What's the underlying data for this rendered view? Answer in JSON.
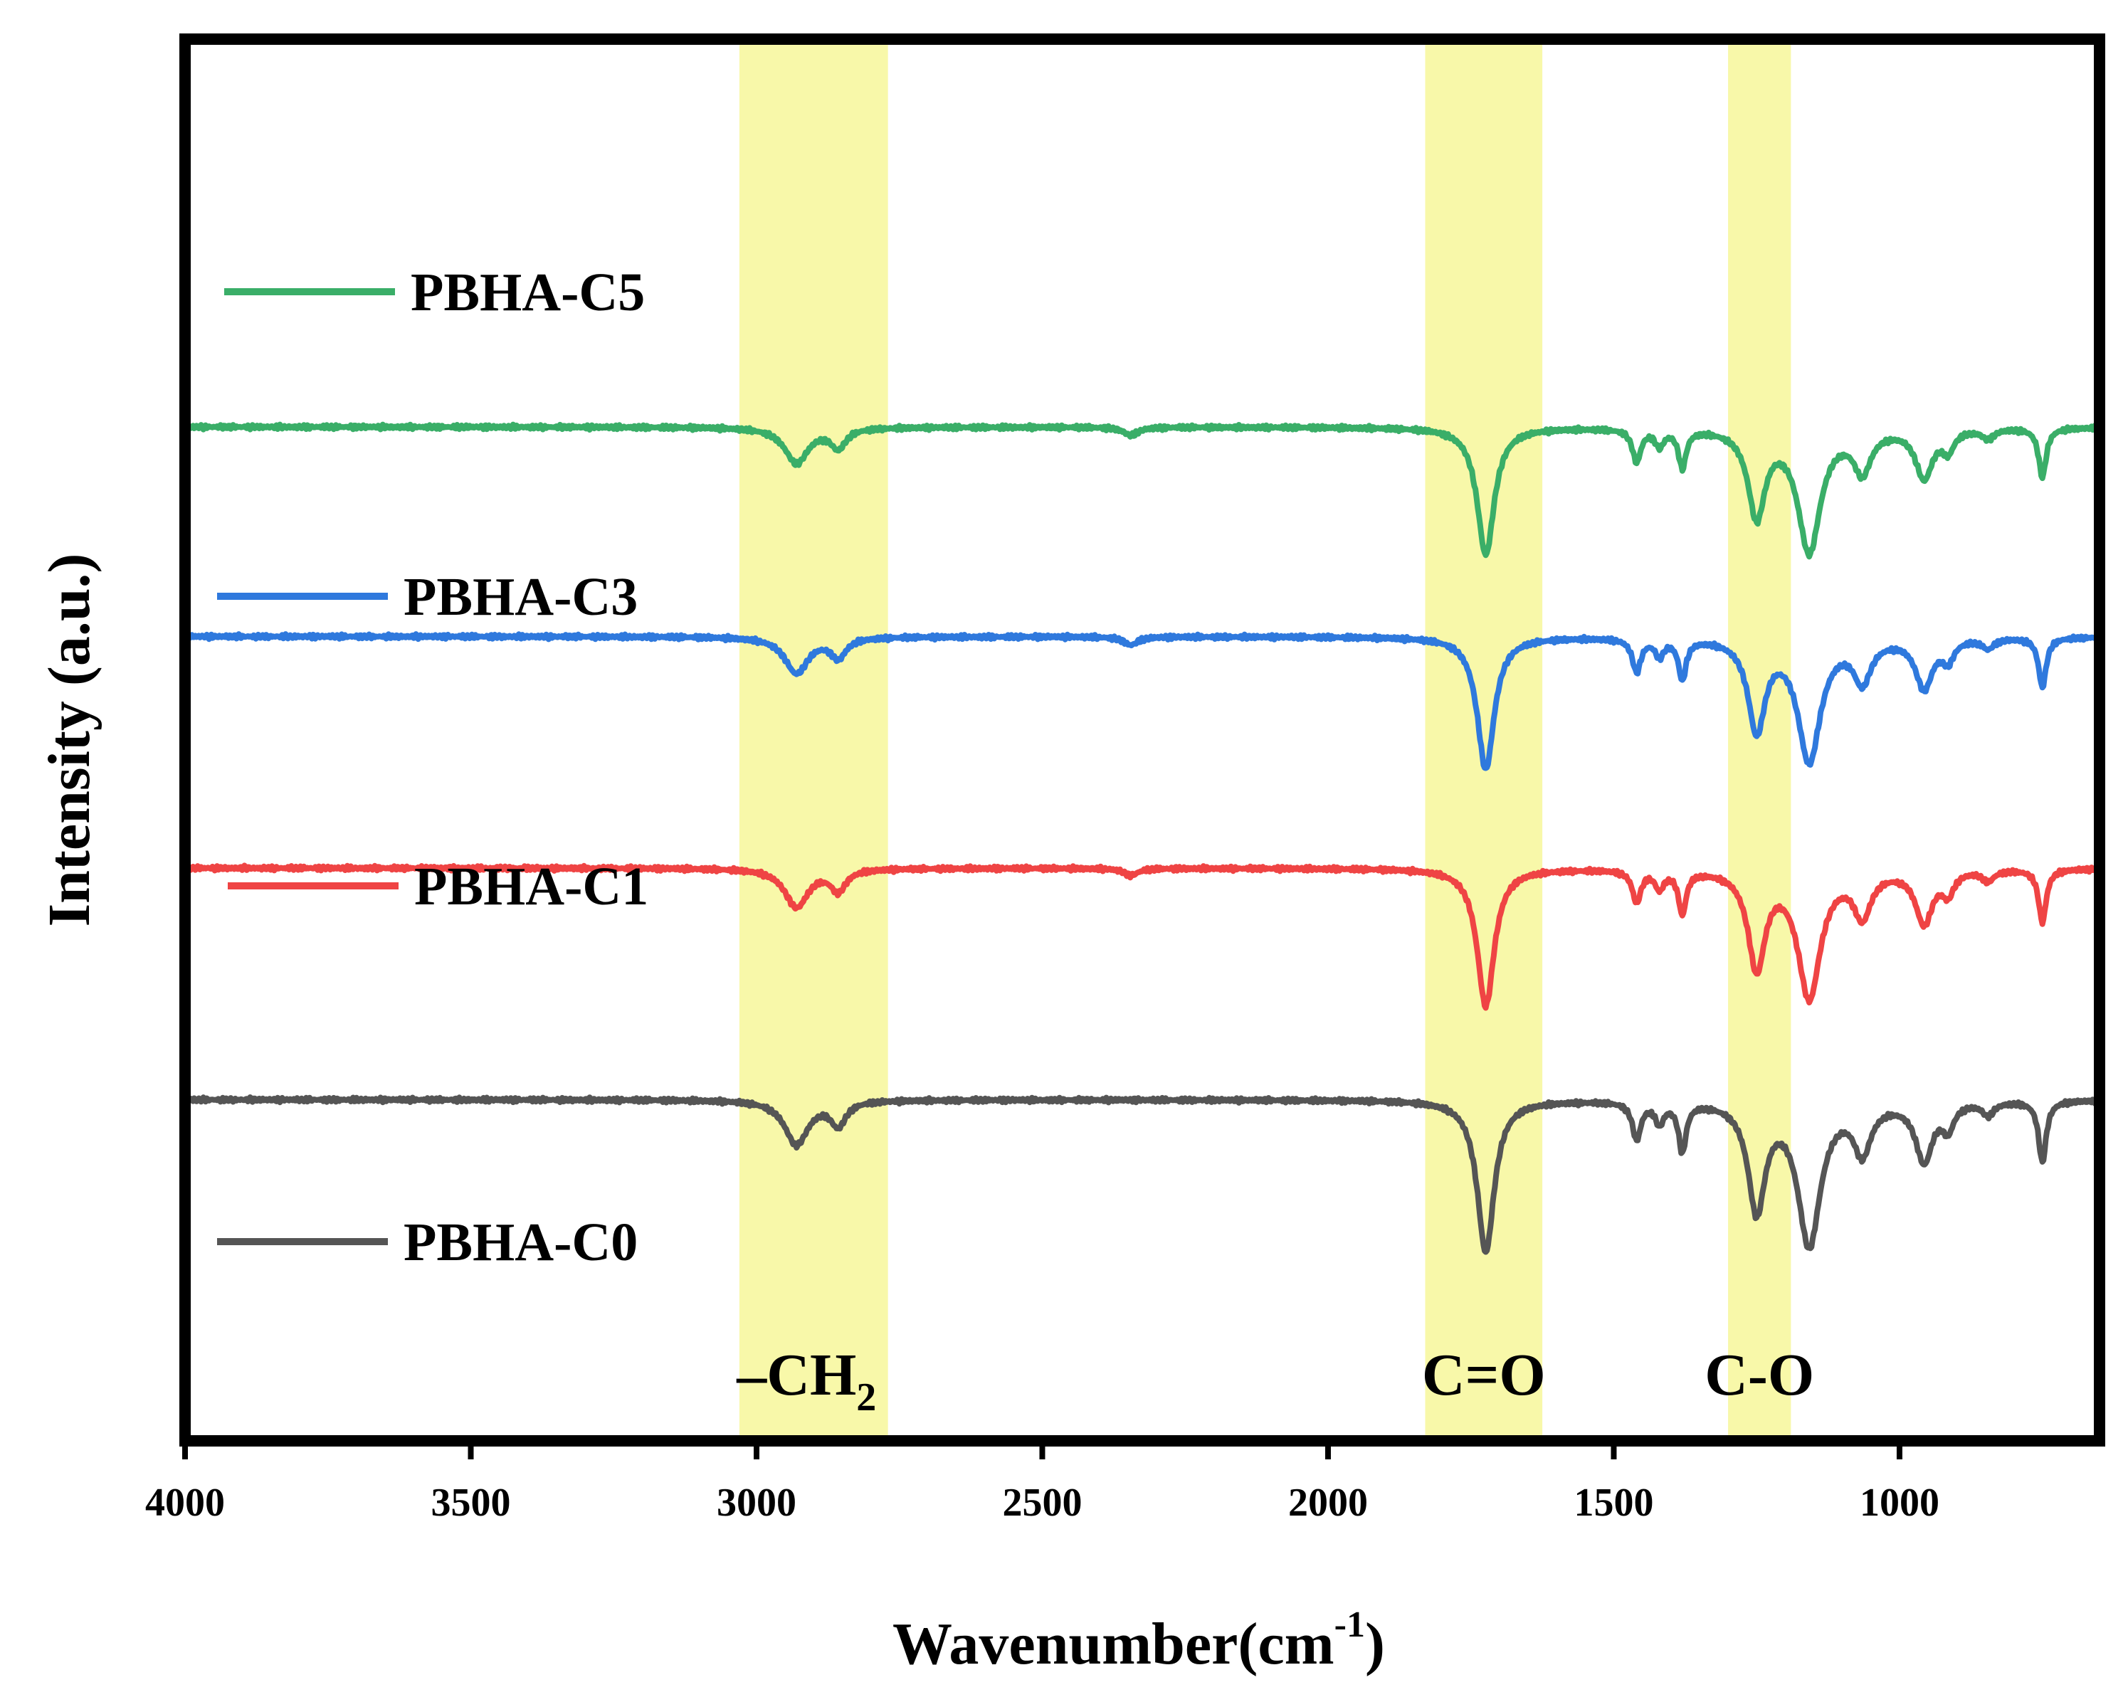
{
  "chart_data": {
    "type": "line",
    "title": "",
    "xlabel": "Wavenumber(cm",
    "xlabel_sup": "-1",
    "xlabel_close": ")",
    "ylabel": "Intensity (a.u.)",
    "xlim": [
      4000,
      650
    ],
    "x_reversed": true,
    "y_ticks_shown": false,
    "x_ticks": [
      4000,
      3500,
      3000,
      2500,
      2000,
      1500,
      1000
    ],
    "x_tick_labels": [
      "4000",
      "3500",
      "3000",
      "2500",
      "2000",
      "1500",
      "1000"
    ],
    "baseline_range": [
      0,
      4
    ],
    "highlight_bands": [
      {
        "name": "ch2-band",
        "from": 3030,
        "to": 2770,
        "label": "–CH",
        "label_sub": "2",
        "color": "#f7f79a"
      },
      {
        "name": "co-double-band",
        "from": 1830,
        "to": 1625,
        "label": "C=O",
        "color": "#f7f79a"
      },
      {
        "name": "co-single-band",
        "from": 1300,
        "to": 1190,
        "label": "C-O",
        "color": "#f7f79a"
      }
    ],
    "series": [
      {
        "name": "PBHA-C5",
        "color": "#3aae68",
        "baseline": 3.0,
        "scale": 0.74,
        "bands": [
          {
            "center": 2930,
            "depth": 0.22,
            "width": 25
          },
          {
            "center": 2857,
            "depth": 0.12,
            "width": 16
          },
          {
            "center": 2345,
            "depth": 0.05,
            "width": 15
          },
          {
            "center": 1724,
            "depth": 0.78,
            "width": 18
          },
          {
            "center": 1460,
            "depth": 0.2,
            "width": 9
          },
          {
            "center": 1420,
            "depth": 0.1,
            "width": 9
          },
          {
            "center": 1380,
            "depth": 0.23,
            "width": 8
          },
          {
            "center": 1250,
            "depth": 0.53,
            "width": 18
          },
          {
            "center": 1158,
            "depth": 0.75,
            "width": 24
          },
          {
            "center": 1065,
            "depth": 0.25,
            "width": 18
          },
          {
            "center": 957,
            "depth": 0.3,
            "width": 18
          },
          {
            "center": 915,
            "depth": 0.12,
            "width": 12
          },
          {
            "center": 845,
            "depth": 0.06,
            "width": 12
          },
          {
            "center": 750,
            "depth": 0.3,
            "width": 8
          }
        ]
      },
      {
        "name": "PBHA-C3",
        "color": "#2f79dd",
        "baseline": 2.05,
        "scale": 0.75,
        "bands": [
          {
            "center": 2930,
            "depth": 0.22,
            "width": 25
          },
          {
            "center": 2857,
            "depth": 0.12,
            "width": 16
          },
          {
            "center": 2345,
            "depth": 0.05,
            "width": 15
          },
          {
            "center": 1724,
            "depth": 0.8,
            "width": 18
          },
          {
            "center": 1460,
            "depth": 0.2,
            "width": 9
          },
          {
            "center": 1420,
            "depth": 0.1,
            "width": 9
          },
          {
            "center": 1380,
            "depth": 0.24,
            "width": 8
          },
          {
            "center": 1250,
            "depth": 0.55,
            "width": 18
          },
          {
            "center": 1158,
            "depth": 0.74,
            "width": 24
          },
          {
            "center": 1065,
            "depth": 0.25,
            "width": 18
          },
          {
            "center": 957,
            "depth": 0.3,
            "width": 18
          },
          {
            "center": 915,
            "depth": 0.12,
            "width": 12
          },
          {
            "center": 845,
            "depth": 0.06,
            "width": 12
          },
          {
            "center": 750,
            "depth": 0.3,
            "width": 8
          }
        ]
      },
      {
        "name": "PBHA-C1",
        "color": "#ef4444",
        "baseline": 1.0,
        "scale": 0.8,
        "bands": [
          {
            "center": 2930,
            "depth": 0.22,
            "width": 25
          },
          {
            "center": 2857,
            "depth": 0.12,
            "width": 16
          },
          {
            "center": 2345,
            "depth": 0.04,
            "width": 15
          },
          {
            "center": 1724,
            "depth": 0.78,
            "width": 18
          },
          {
            "center": 1460,
            "depth": 0.18,
            "width": 9
          },
          {
            "center": 1420,
            "depth": 0.1,
            "width": 9
          },
          {
            "center": 1380,
            "depth": 0.24,
            "width": 8
          },
          {
            "center": 1250,
            "depth": 0.55,
            "width": 18
          },
          {
            "center": 1158,
            "depth": 0.72,
            "width": 24
          },
          {
            "center": 1065,
            "depth": 0.25,
            "width": 18
          },
          {
            "center": 957,
            "depth": 0.3,
            "width": 18
          },
          {
            "center": 915,
            "depth": 0.12,
            "width": 12
          },
          {
            "center": 845,
            "depth": 0.06,
            "width": 12
          },
          {
            "center": 750,
            "depth": 0.3,
            "width": 8
          }
        ]
      },
      {
        "name": "PBHA-C0",
        "color": "#555555",
        "baseline": -0.05,
        "scale": 0.84,
        "bands": [
          {
            "center": 2930,
            "depth": 0.24,
            "width": 25
          },
          {
            "center": 2857,
            "depth": 0.13,
            "width": 16
          },
          {
            "center": 1724,
            "depth": 0.82,
            "width": 18
          },
          {
            "center": 1460,
            "depth": 0.2,
            "width": 9
          },
          {
            "center": 1420,
            "depth": 0.11,
            "width": 9
          },
          {
            "center": 1380,
            "depth": 0.26,
            "width": 8
          },
          {
            "center": 1250,
            "depth": 0.58,
            "width": 18
          },
          {
            "center": 1158,
            "depth": 0.77,
            "width": 24
          },
          {
            "center": 1065,
            "depth": 0.26,
            "width": 18
          },
          {
            "center": 957,
            "depth": 0.32,
            "width": 18
          },
          {
            "center": 915,
            "depth": 0.13,
            "width": 12
          },
          {
            "center": 845,
            "depth": 0.07,
            "width": 12
          },
          {
            "center": 750,
            "depth": 0.33,
            "width": 8
          }
        ]
      }
    ],
    "legend": {
      "placement": "left, beside each trace",
      "entries": [
        "PBHA-C5",
        "PBHA-C3",
        "PBHA-C1",
        "PBHA-C0"
      ]
    }
  }
}
